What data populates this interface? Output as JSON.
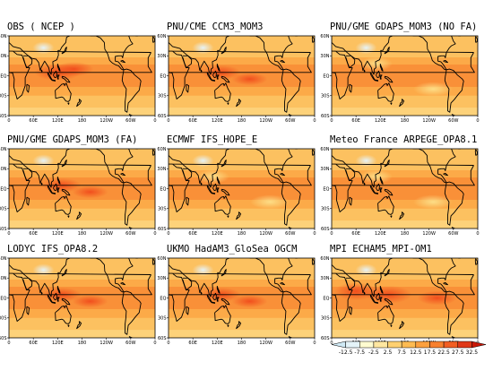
{
  "figure": {
    "panels": [
      {
        "title": "OBS ( NCEP )",
        "pattern": "obs"
      },
      {
        "title": "PNU/CME CCM3_MOM3",
        "pattern": "warm"
      },
      {
        "title": "PNU/GME GDAPS_MOM3 (NO FA)",
        "pattern": "cool"
      },
      {
        "title": "PNU/GME GDAPS_MOM3 (FA)",
        "pattern": "warm"
      },
      {
        "title": "ECMWF IFS_HOPE_E",
        "pattern": "cool"
      },
      {
        "title": "Meteo France ARPEGE_OPA8.1",
        "pattern": "cool"
      },
      {
        "title": "LODYC IFS_OPA8.2",
        "pattern": "warm"
      },
      {
        "title": "UKMO HadAM3_GloSea OGCM",
        "pattern": "warm"
      },
      {
        "title": "MPI ECHAM5_MPI-OM1",
        "pattern": "hot"
      }
    ],
    "lon_ticks": [
      "0",
      "60E",
      "120E",
      "180",
      "120W",
      "60W",
      "0"
    ],
    "lat_ticks": [
      "60N",
      "30N",
      "EQ",
      "30S",
      "60S"
    ],
    "colorbar": {
      "ticks": [
        "-12.5",
        "-7.5",
        "-2.5",
        "2.5",
        "7.5",
        "12.5",
        "17.5",
        "22.5",
        "27.5",
        "32.5"
      ],
      "colors": [
        "#cfe9f5",
        "#e4f3f8",
        "#fffcd0",
        "#ffe7a0",
        "#fed070",
        "#fdbb52",
        "#fca03e",
        "#f8802e",
        "#f25e22",
        "#e03818",
        "#c81808"
      ]
    }
  }
}
